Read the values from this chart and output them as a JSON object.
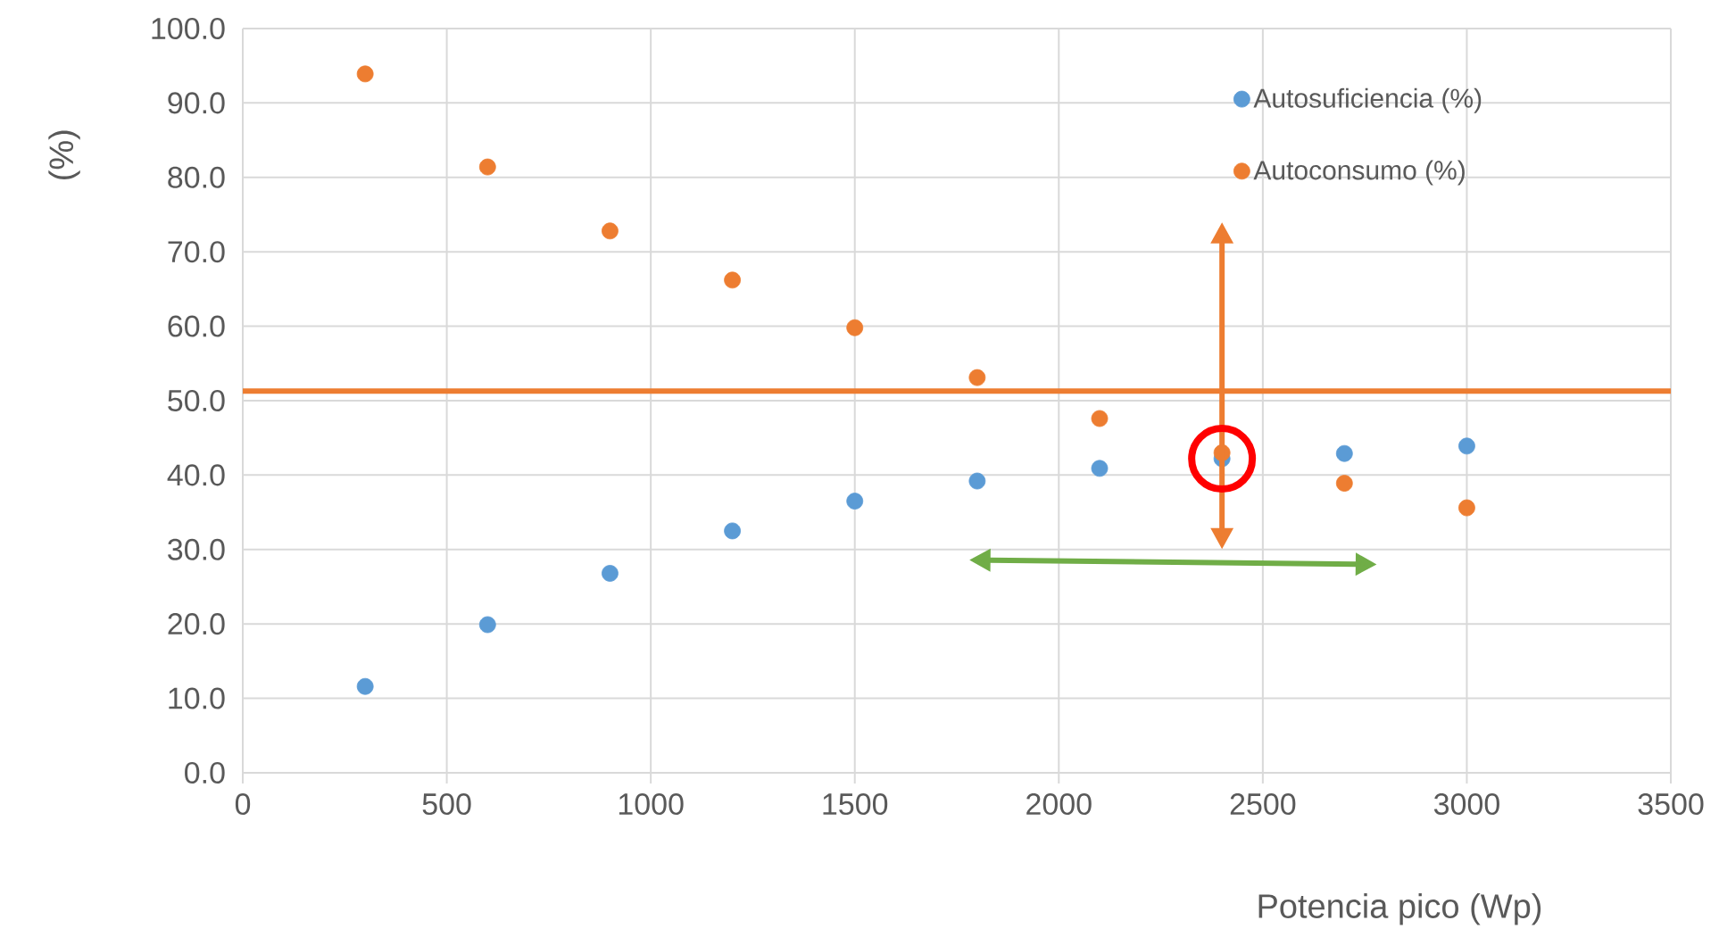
{
  "chart_data": {
    "type": "scatter",
    "xlabel": "Potencia pico (Wp)",
    "ylabel": "(%)",
    "x": [
      300,
      600,
      900,
      1200,
      1500,
      1800,
      2100,
      2400,
      2700,
      3000
    ],
    "series": [
      {
        "name": "Autosuficiencia (%)",
        "color": "#5b9bd5",
        "values": [
          11.6,
          19.9,
          26.8,
          32.5,
          36.5,
          39.2,
          40.9,
          42.2,
          42.9,
          43.9
        ]
      },
      {
        "name": "Autoconsumo (%)",
        "color": "#ed7d31",
        "values": [
          93.9,
          81.4,
          72.8,
          66.2,
          59.8,
          53.1,
          47.6,
          43.0,
          38.9,
          35.6
        ]
      }
    ],
    "xlim": [
      0,
      3500
    ],
    "ylim": [
      0,
      100
    ],
    "xticks": [
      0,
      500,
      1000,
      1500,
      2000,
      2500,
      3000,
      3500
    ],
    "yticks": [
      {
        "value": 0,
        "label": "0.0"
      },
      {
        "value": 10,
        "label": "10.0"
      },
      {
        "value": 20,
        "label": "20.0"
      },
      {
        "value": 30,
        "label": "30.0"
      },
      {
        "value": 40,
        "label": "40.0"
      },
      {
        "value": 50,
        "label": "50.0"
      },
      {
        "value": 60,
        "label": "60.0"
      },
      {
        "value": 70,
        "label": "70.0"
      },
      {
        "value": 80,
        "label": "80.0"
      },
      {
        "value": 90,
        "label": "90.0"
      },
      {
        "value": 100,
        "label": "100.0"
      }
    ],
    "grid": true,
    "legend": "top right",
    "marker": "circle",
    "ref_lines": [
      {
        "axis": "y",
        "value": 51.3,
        "color": "#ed7d31"
      }
    ]
  }
}
